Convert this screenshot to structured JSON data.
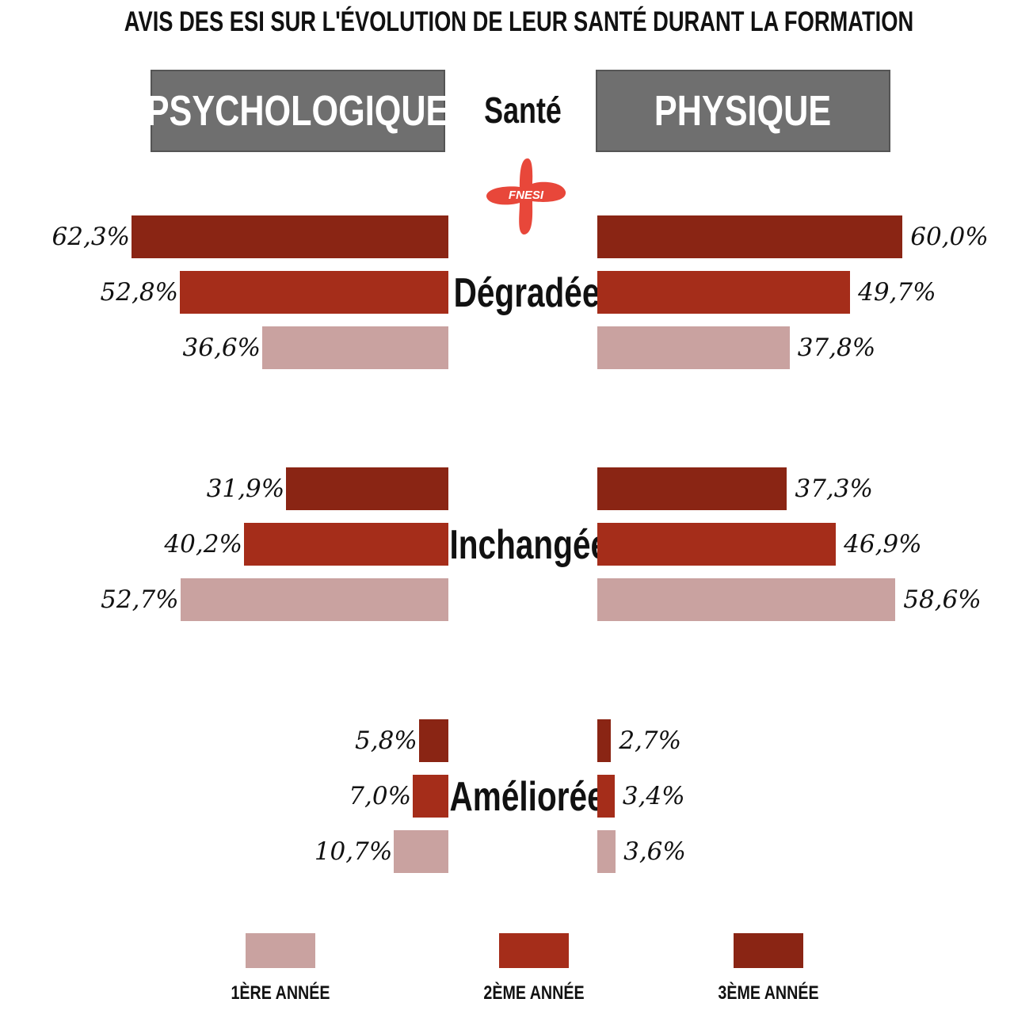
{
  "chart_data": {
    "type": "bar",
    "title": "AVIS DES ESI SUR L'ÉVOLUTION DE LEUR SANTÉ DURANT LA FORMATION",
    "center_heading": "Santé",
    "logo_text": "FNESI",
    "panels": [
      {
        "name": "PSYCHOLOGIQUE",
        "side": "left"
      },
      {
        "name": "PHYSIQUE",
        "side": "right"
      }
    ],
    "categories": [
      "Dégradée",
      "Inchangée",
      "Améliorée"
    ],
    "series_order_in_group": [
      "3ÈME ANNÉE",
      "2ÈME ANNÉE",
      "1ÈRE ANNÉE"
    ],
    "series": [
      {
        "name": "3ÈME ANNÉE",
        "color": "#8a2514",
        "psychologique": [
          62.3,
          31.9,
          5.8
        ],
        "physique": [
          60.0,
          37.3,
          2.7
        ],
        "psychologique_labels": [
          "62,3%",
          "31,9%",
          "5,8%"
        ],
        "physique_labels": [
          "60,0%",
          "37,3%",
          "2,7%"
        ]
      },
      {
        "name": "2ÈME ANNÉE",
        "color": "#a52d1a",
        "psychologique": [
          52.8,
          40.2,
          7.0
        ],
        "physique": [
          49.7,
          46.9,
          3.4
        ],
        "psychologique_labels": [
          "52,8%",
          "40,2%",
          "7,0%"
        ],
        "physique_labels": [
          "49,7%",
          "46,9%",
          "3,4%"
        ]
      },
      {
        "name": "1ÈRE ANNÉE",
        "color": "#c9a2a0",
        "psychologique": [
          36.6,
          52.7,
          10.7
        ],
        "physique": [
          37.8,
          58.6,
          3.6
        ],
        "psychologique_labels": [
          "36,6%",
          "52,7%",
          "10,7%"
        ],
        "physique_labels": [
          "37,8%",
          "58,6%",
          "3,6%"
        ]
      }
    ],
    "legend": [
      {
        "label": "1ÈRE ANNÉE",
        "color": "#c9a2a0"
      },
      {
        "label": "2ÈME ANNÉE",
        "color": "#a52d1a"
      },
      {
        "label": "3ÈME ANNÉE",
        "color": "#8a2514"
      }
    ],
    "colors": {
      "header_bg": "#6f6f6f",
      "logo": "#e8473a"
    },
    "legend_position": "bottom",
    "grid": false
  }
}
